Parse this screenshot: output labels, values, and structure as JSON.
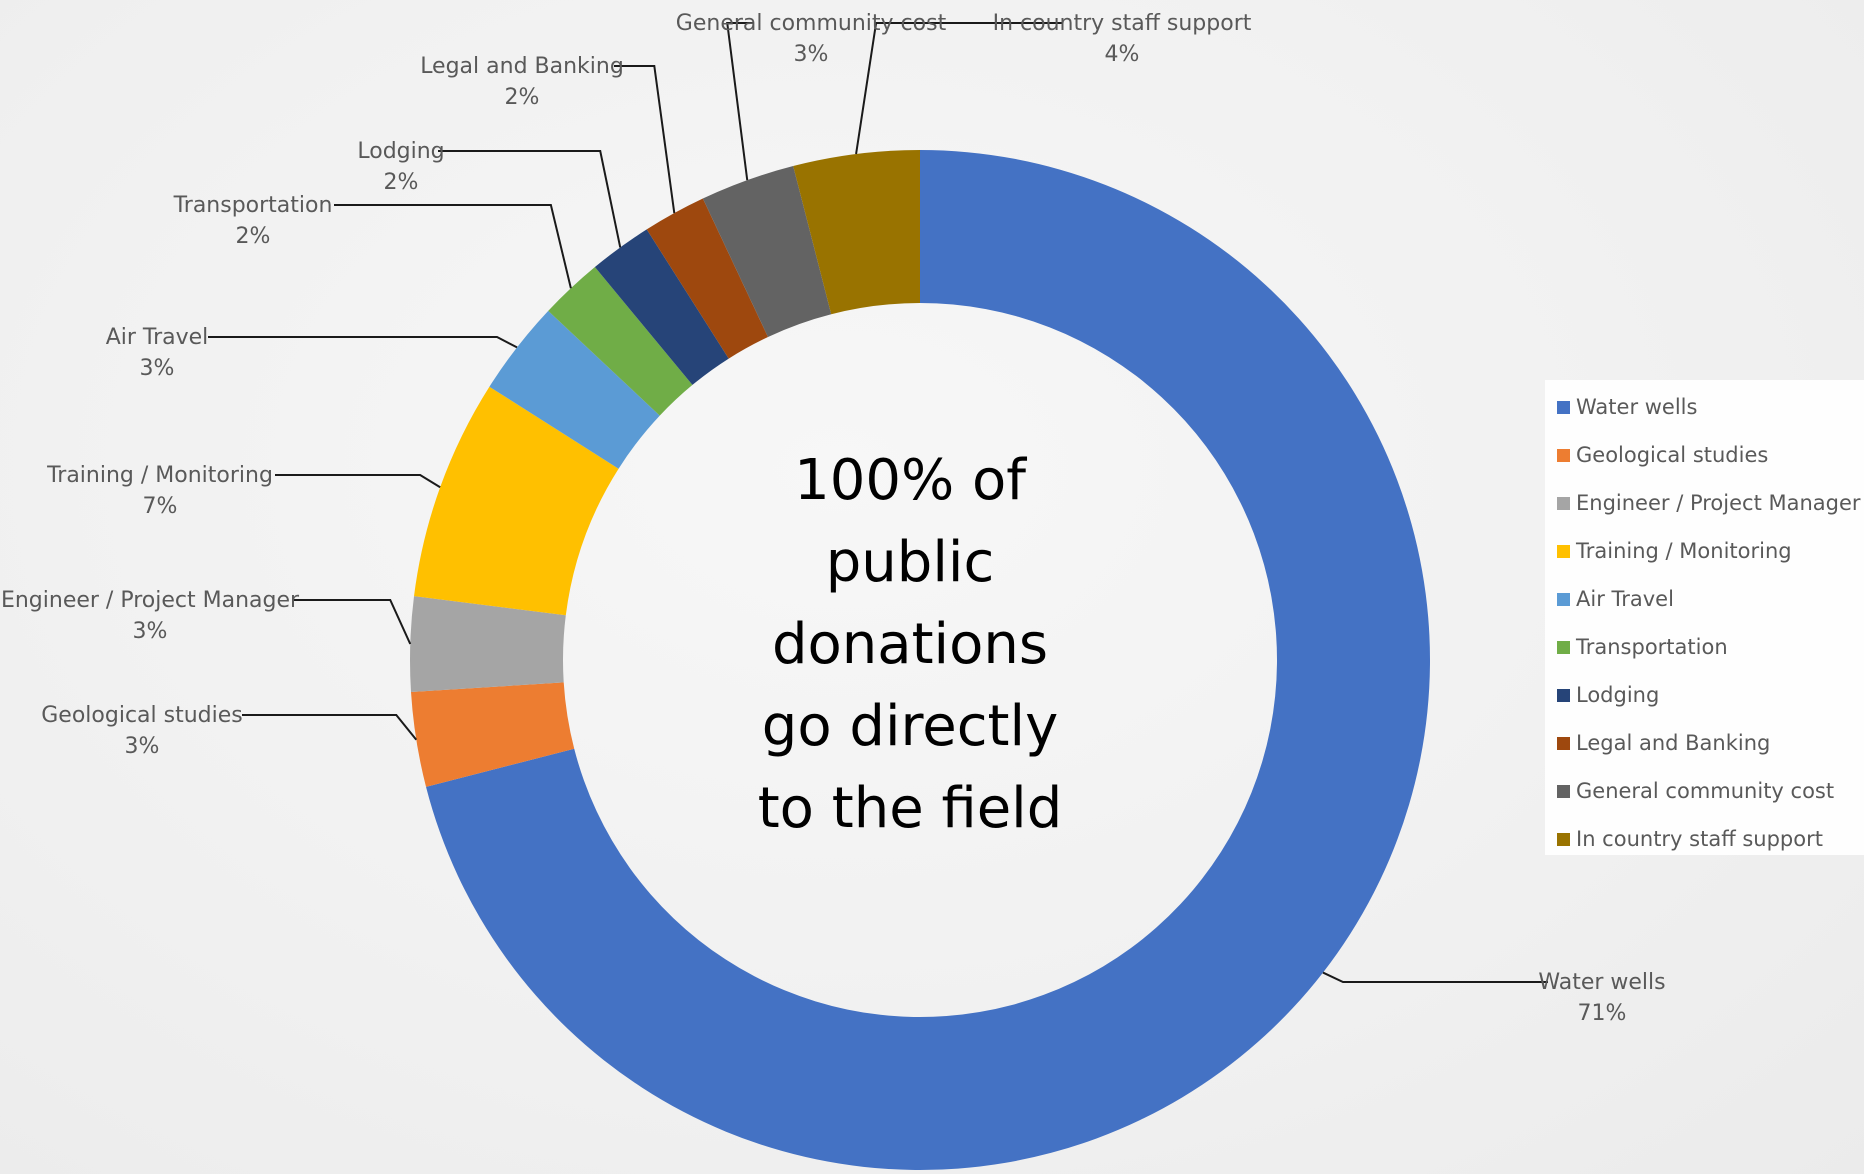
{
  "center_text": [
    "100% of",
    "public",
    "donations",
    "go directly",
    "to the field"
  ],
  "chart_data": {
    "type": "pie",
    "donut": true,
    "legend_position": "right",
    "slices": [
      {
        "label": "Water wells",
        "value": 71,
        "value_label": "71%",
        "color": "#4472C4"
      },
      {
        "label": "Geological studies",
        "value": 3,
        "value_label": "3%",
        "color": "#ED7D31"
      },
      {
        "label": "Engineer / Project Manager",
        "value": 3,
        "value_label": "3%",
        "color": "#A5A5A5"
      },
      {
        "label": "Training / Monitoring",
        "value": 7,
        "value_label": "7%",
        "color": "#FFC000"
      },
      {
        "label": "Air Travel",
        "value": 3,
        "value_label": "3%",
        "color": "#5B9BD5"
      },
      {
        "label": "Transportation",
        "value": 2,
        "value_label": "2%",
        "color": "#70AD47"
      },
      {
        "label": "Lodging",
        "value": 2,
        "value_label": "2%",
        "color": "#264478"
      },
      {
        "label": "Legal and Banking",
        "value": 2,
        "value_label": "2%",
        "color": "#9E480E"
      },
      {
        "label": "General community cost",
        "value": 3,
        "value_label": "3%",
        "color": "#636363"
      },
      {
        "label": "In country staff support",
        "value": 4,
        "value_label": "4%",
        "color": "#997300"
      }
    ]
  }
}
